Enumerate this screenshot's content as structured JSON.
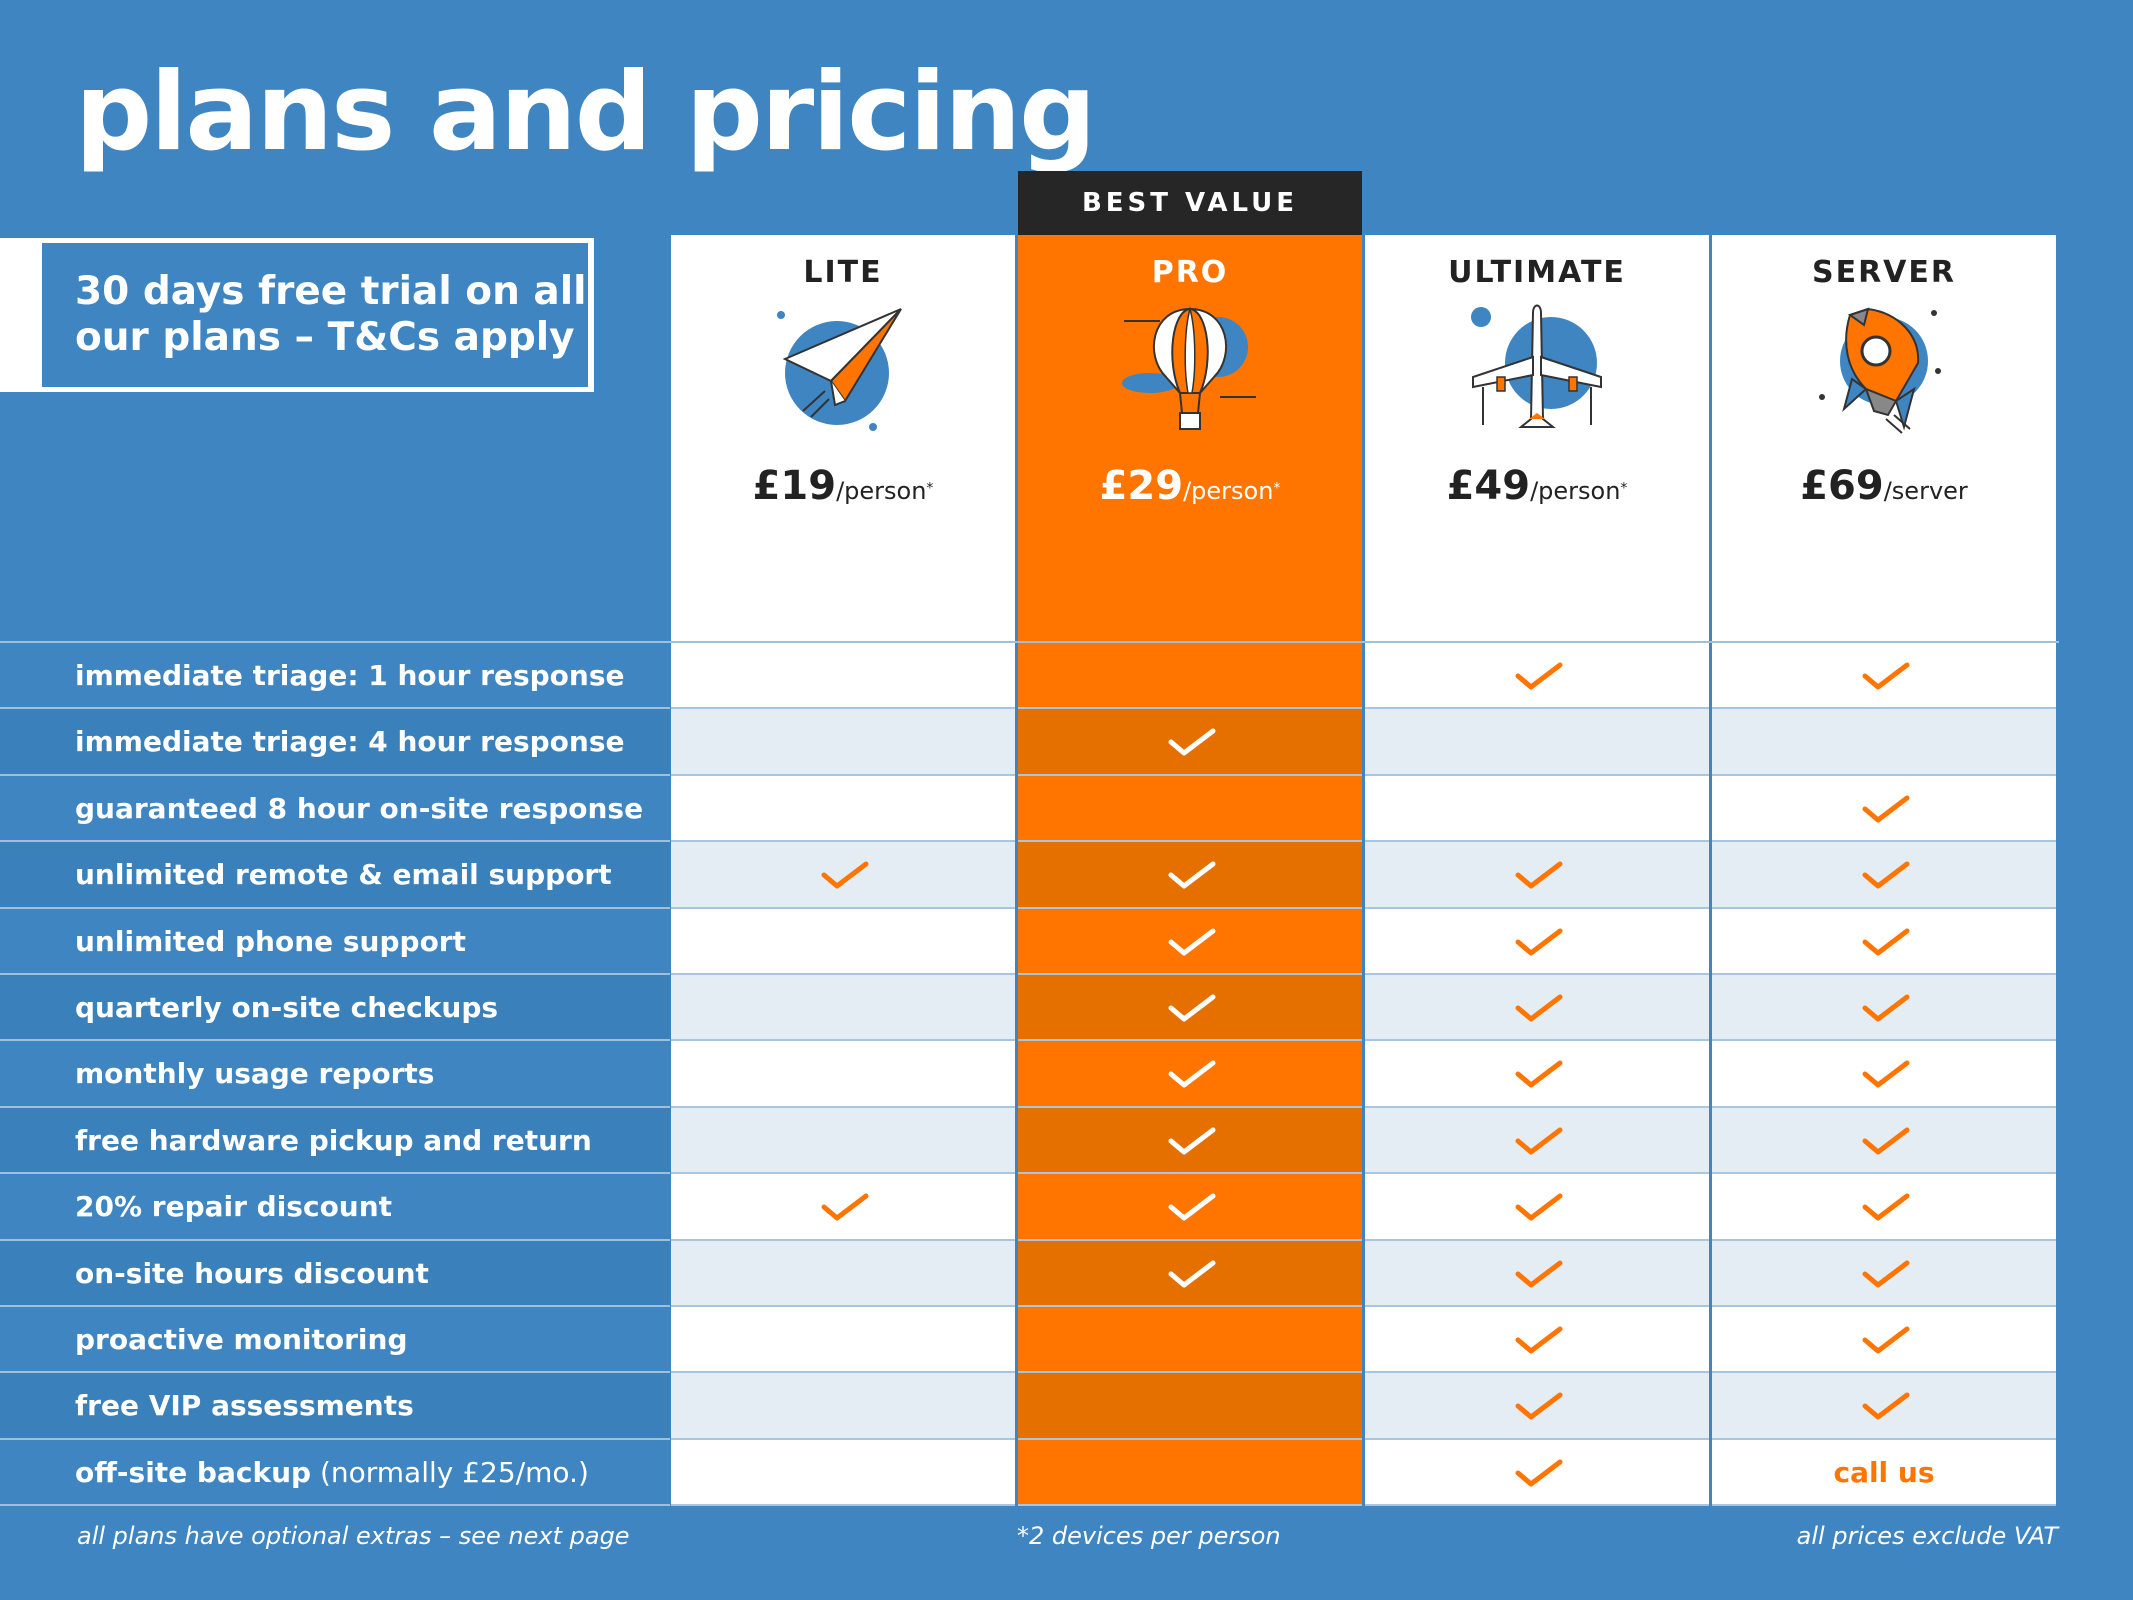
{
  "title": "plans and pricing",
  "trial_text_line1": "30 days free trial on all",
  "trial_text_line2": "our plans – T&Cs apply",
  "best_value": "BEST VALUE",
  "colors": {
    "blue": "#3e85c1",
    "orange": "#ff7500",
    "dark": "#262626",
    "white": "#ffffff"
  },
  "plans": [
    {
      "name": "LITE",
      "price": "£19",
      "unit": "/person",
      "asterisk": "*",
      "icon": "paper-plane-icon"
    },
    {
      "name": "PRO",
      "price": "£29",
      "unit": "/person",
      "asterisk": "*",
      "icon": "hot-air-balloon-icon"
    },
    {
      "name": "ULTIMATE",
      "price": "£49",
      "unit": "/person",
      "asterisk": "*",
      "icon": "airplane-icon"
    },
    {
      "name": "SERVER",
      "price": "£69",
      "unit": "/server",
      "asterisk": "",
      "icon": "rocket-icon"
    }
  ],
  "features": [
    {
      "label": "immediate triage: 1 hour response",
      "note": "",
      "values": [
        false,
        false,
        true,
        true
      ]
    },
    {
      "label": "immediate triage: 4 hour response",
      "note": "",
      "values": [
        false,
        true,
        false,
        false
      ]
    },
    {
      "label": "guaranteed 8 hour on-site response",
      "note": "",
      "values": [
        false,
        false,
        false,
        true
      ]
    },
    {
      "label": "unlimited remote & email support",
      "note": "",
      "values": [
        true,
        true,
        true,
        true
      ]
    },
    {
      "label": "unlimited phone support",
      "note": "",
      "values": [
        false,
        true,
        true,
        true
      ]
    },
    {
      "label": "quarterly on-site checkups",
      "note": "",
      "values": [
        false,
        true,
        true,
        true
      ]
    },
    {
      "label": "monthly usage reports",
      "note": "",
      "values": [
        false,
        true,
        true,
        true
      ]
    },
    {
      "label": "free hardware pickup and return",
      "note": "",
      "values": [
        false,
        true,
        true,
        true
      ]
    },
    {
      "label": "20% repair discount",
      "note": "",
      "values": [
        true,
        true,
        true,
        true
      ]
    },
    {
      "label": "on-site hours discount",
      "note": "",
      "values": [
        false,
        true,
        true,
        true
      ]
    },
    {
      "label": "proactive monitoring",
      "note": "",
      "values": [
        false,
        false,
        true,
        true
      ]
    },
    {
      "label": "free VIP assessments",
      "note": "",
      "values": [
        false,
        false,
        true,
        true
      ]
    },
    {
      "label": "off-site backup",
      "note": " (normally £25/mo.)",
      "values": [
        false,
        false,
        true,
        "call us"
      ]
    }
  ],
  "footer": {
    "left": "all plans have optional extras – see next page",
    "center": "*2 devices per person",
    "right": "all prices exclude VAT"
  }
}
